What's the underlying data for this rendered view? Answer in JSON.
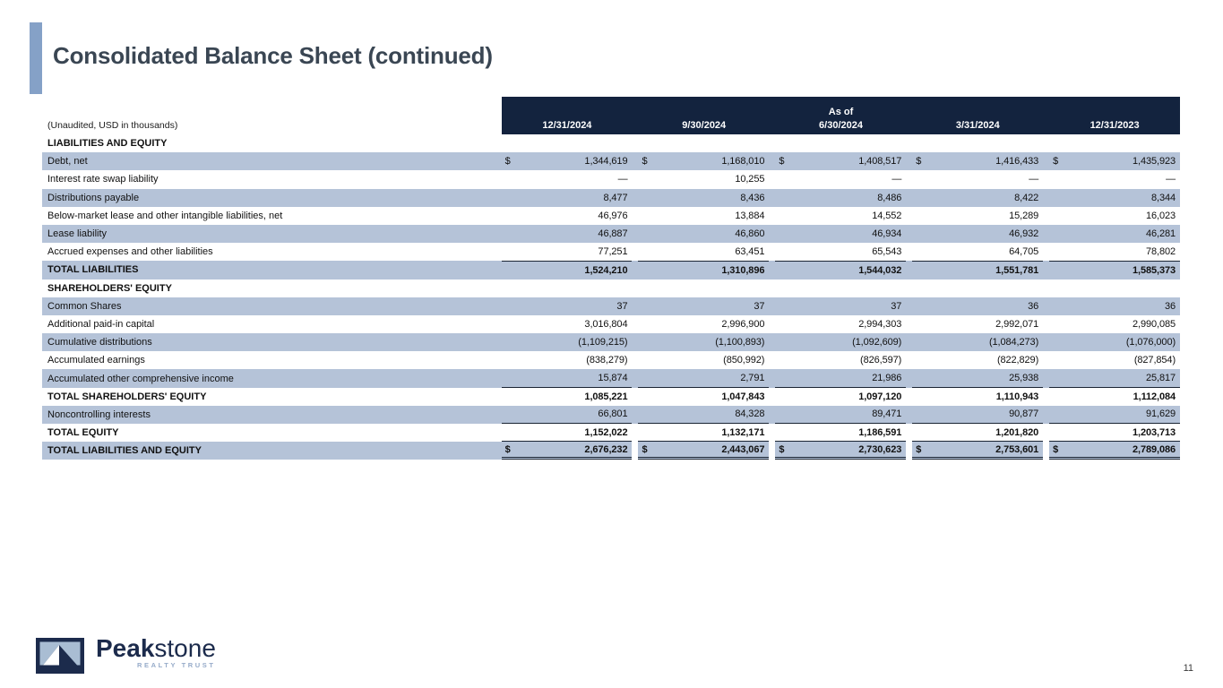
{
  "page": {
    "title": "Consolidated Balance Sheet (continued)",
    "page_number": "11"
  },
  "table": {
    "note": "(Unaudited, USD in thousands)",
    "as_of": "As of",
    "columns": [
      "12/31/2024",
      "9/30/2024",
      "6/30/2024",
      "3/31/2024",
      "12/31/2023"
    ],
    "rows": [
      {
        "label": "LIABILITIES AND EQUITY",
        "type": "section",
        "shaded": false,
        "bold": true,
        "dollar": false,
        "values": []
      },
      {
        "label": "Debt, net",
        "type": "data",
        "shaded": true,
        "bold": false,
        "dollar": true,
        "values": [
          "1,344,619",
          "1,168,010",
          "1,408,517",
          "1,416,433",
          "1,435,923"
        ]
      },
      {
        "label": "Interest rate swap liability",
        "type": "data",
        "shaded": false,
        "bold": false,
        "dollar": false,
        "values": [
          "—",
          "10,255",
          "—",
          "—",
          "—"
        ]
      },
      {
        "label": "Distributions payable",
        "type": "data",
        "shaded": true,
        "bold": false,
        "dollar": false,
        "values": [
          "8,477",
          "8,436",
          "8,486",
          "8,422",
          "8,344"
        ]
      },
      {
        "label": "Below-market lease and other intangible liabilities, net",
        "type": "data",
        "shaded": false,
        "bold": false,
        "dollar": false,
        "values": [
          "46,976",
          "13,884",
          "14,552",
          "15,289",
          "16,023"
        ]
      },
      {
        "label": "Lease liability",
        "type": "data",
        "shaded": true,
        "bold": false,
        "dollar": false,
        "values": [
          "46,887",
          "46,860",
          "46,934",
          "46,932",
          "46,281"
        ]
      },
      {
        "label": "Accrued expenses and other liabilities",
        "type": "data",
        "shaded": false,
        "bold": false,
        "dollar": false,
        "values": [
          "77,251",
          "63,451",
          "65,543",
          "64,705",
          "78,802"
        ]
      },
      {
        "label": "TOTAL LIABILITIES",
        "type": "data",
        "shaded": true,
        "bold": true,
        "dollar": false,
        "rule_above": "single",
        "values": [
          "1,524,210",
          "1,310,896",
          "1,544,032",
          "1,551,781",
          "1,585,373"
        ]
      },
      {
        "label": "SHAREHOLDERS' EQUITY",
        "type": "section",
        "shaded": false,
        "bold": true,
        "dollar": false,
        "values": []
      },
      {
        "label": "Common Shares",
        "type": "data",
        "shaded": true,
        "bold": false,
        "dollar": false,
        "values": [
          "37",
          "37",
          "37",
          "36",
          "36"
        ]
      },
      {
        "label": "Additional paid-in capital",
        "type": "data",
        "shaded": false,
        "bold": false,
        "dollar": false,
        "values": [
          "3,016,804",
          "2,996,900",
          "2,994,303",
          "2,992,071",
          "2,990,085"
        ]
      },
      {
        "label": "Cumulative distributions",
        "type": "data",
        "shaded": true,
        "bold": false,
        "dollar": false,
        "values": [
          "(1,109,215)",
          "(1,100,893)",
          "(1,092,609)",
          "(1,084,273)",
          "(1,076,000)"
        ]
      },
      {
        "label": "Accumulated earnings",
        "type": "data",
        "shaded": false,
        "bold": false,
        "dollar": false,
        "values": [
          "(838,279)",
          "(850,992)",
          "(826,597)",
          "(822,829)",
          "(827,854)"
        ]
      },
      {
        "label": "Accumulated other comprehensive income",
        "type": "data",
        "shaded": true,
        "bold": false,
        "dollar": false,
        "rule_below": "single",
        "values": [
          "15,874",
          "2,791",
          "21,986",
          "25,938",
          "25,817"
        ]
      },
      {
        "label": "TOTAL SHAREHOLDERS' EQUITY",
        "type": "data",
        "shaded": false,
        "bold": true,
        "dollar": false,
        "values": [
          "1,085,221",
          "1,047,843",
          "1,097,120",
          "1,110,943",
          "1,112,084"
        ]
      },
      {
        "label": "Noncontrolling interests",
        "type": "data",
        "shaded": true,
        "bold": false,
        "dollar": false,
        "rule_below": "single",
        "values": [
          "66,801",
          "84,328",
          "89,471",
          "90,877",
          "91,629"
        ]
      },
      {
        "label": "TOTAL EQUITY",
        "type": "data",
        "shaded": false,
        "bold": true,
        "dollar": false,
        "rule_below": "single",
        "values": [
          "1,152,022",
          "1,132,171",
          "1,186,591",
          "1,201,820",
          "1,203,713"
        ]
      },
      {
        "label": "TOTAL LIABILITIES AND EQUITY",
        "type": "data",
        "shaded": true,
        "bold": true,
        "dollar": true,
        "rule_below": "double",
        "segmented": true,
        "values": [
          "2,676,232",
          "2,443,067",
          "2,730,623",
          "2,753,601",
          "2,789,086"
        ]
      }
    ]
  },
  "footer": {
    "brand_bold": "Peak",
    "brand_light": "stone",
    "brand_tagline": "REALTY TRUST"
  },
  "colors": {
    "header_bg": "#13233E",
    "row_shade": "#B5C3D8",
    "accent": "#85A1C7",
    "rule": "#1A2433",
    "brand_navy": "#1C2B4C",
    "brand_blue": "#96ABC9",
    "title_color": "#3A4653",
    "logo_inner": "#A9BDD3"
  }
}
